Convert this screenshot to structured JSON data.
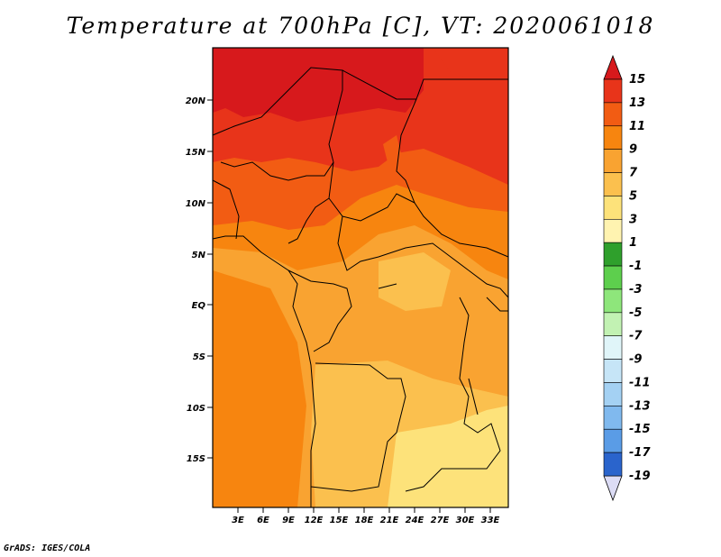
{
  "title": "Temperature at 700hPa [C], VT: 2020061018",
  "credit": "GrADS: IGES/COLA",
  "lat_labels": [
    "20N",
    "15N",
    "10N",
    "5N",
    "EQ",
    "5S",
    "10S",
    "15S"
  ],
  "lon_labels": [
    "3E",
    "6E",
    "9E",
    "12E",
    "15E",
    "18E",
    "21E",
    "24E",
    "27E",
    "30E",
    "33E"
  ],
  "colorbar": {
    "labels": [
      "15",
      "13",
      "11",
      "9",
      "7",
      "5",
      "3",
      "1",
      "-1",
      "-3",
      "-5",
      "-7",
      "-9",
      "-11",
      "-13",
      "-15",
      "-17",
      "-19"
    ],
    "colors": [
      "#d7191c",
      "#e8341a",
      "#f25c13",
      "#f7850f",
      "#f9a331",
      "#fbc04e",
      "#fde27a",
      "#fff3b0",
      "#2fa02c",
      "#5dcf4d",
      "#8ee67b",
      "#c2f2b3",
      "#e0f5f9",
      "#c6e5f7",
      "#a4d1f3",
      "#80b9ee",
      "#5a9ce6",
      "#3b7edc",
      "#245fc9",
      "#1646b0",
      "#0c2c8c",
      "#08136a",
      "#dcdcf5"
    ],
    "top_color": "#d7191c",
    "bottom_color": "#dcdcf5"
  },
  "field_colors": {
    "t15": "#d7191c",
    "t13": "#e8341a",
    "t11": "#f25c13",
    "t9": "#f7850f",
    "t7": "#f9a331",
    "t5": "#fbc04e",
    "t3": "#fde27a"
  }
}
